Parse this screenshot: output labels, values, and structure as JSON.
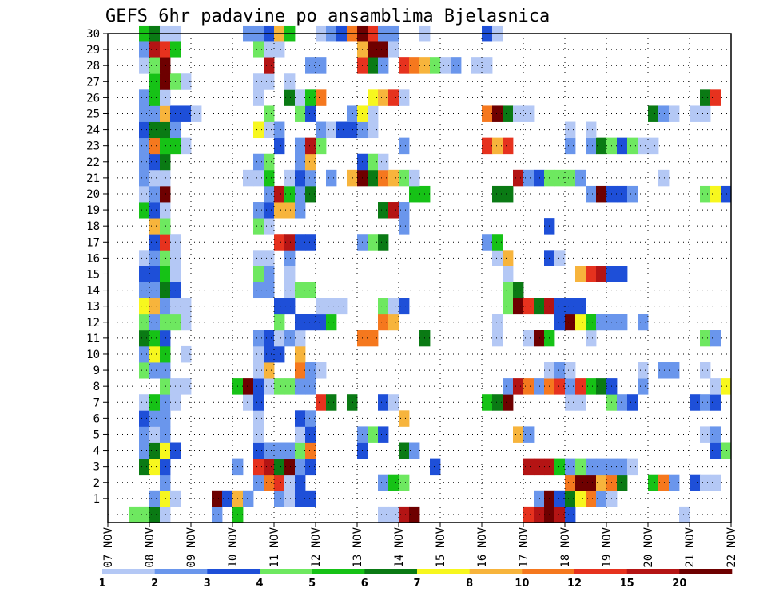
{
  "chart_data": {
    "type": "heatmap",
    "title": "GEFS 6hr padavine po ansamblima Bjelasnica",
    "xlabel": "",
    "ylabel": "",
    "x_tick_labels": [
      "07 NOV",
      "08 NOV",
      "09 NOV",
      "10 NOV",
      "11 NOV",
      "12 NOV",
      "13 NOV",
      "14 NOV",
      "15 NOV",
      "16 NOV",
      "17 NOV",
      "18 NOV",
      "19 NOV",
      "20 NOV",
      "21 NOV",
      "22 NOV"
    ],
    "xlim": [
      "07 NOV 00Z",
      "22 NOV 00Z"
    ],
    "time_step_hours": 6,
    "y_tick_labels": [
      "1",
      "2",
      "3",
      "4",
      "5",
      "6",
      "7",
      "8",
      "9",
      "10",
      "11",
      "12",
      "13",
      "14",
      "15",
      "16",
      "17",
      "18",
      "19",
      "20",
      "21",
      "22",
      "23",
      "24",
      "25",
      "26",
      "27",
      "28",
      "29",
      "30"
    ],
    "ylim": [
      0,
      30
    ],
    "grid": "dotted",
    "colorbar": {
      "position": "bottom",
      "labels": [
        "1",
        "2",
        "3",
        "4",
        "5",
        "6",
        "7",
        "8",
        "10",
        "12",
        "15",
        "20"
      ],
      "bins": [
        {
          "lo": 1,
          "hi": 2,
          "color": "#b4c8f5"
        },
        {
          "lo": 2,
          "hi": 3,
          "color": "#6a96ec"
        },
        {
          "lo": 3,
          "hi": 4,
          "color": "#1e4fd8"
        },
        {
          "lo": 4,
          "hi": 5,
          "color": "#6ee860"
        },
        {
          "lo": 5,
          "hi": 6,
          "color": "#16c216"
        },
        {
          "lo": 6,
          "hi": 7,
          "color": "#0a7a14"
        },
        {
          "lo": 7,
          "hi": 8,
          "color": "#f7f71e"
        },
        {
          "lo": 8,
          "hi": 10,
          "color": "#f7b43c"
        },
        {
          "lo": 10,
          "hi": 12,
          "color": "#f5781e"
        },
        {
          "lo": 12,
          "hi": 15,
          "color": "#e6321e"
        },
        {
          "lo": 15,
          "hi": 20,
          "color": "#b41414"
        },
        {
          "lo": 20,
          "hi": 30,
          "color": "#6e0000"
        }
      ]
    },
    "members": {
      "30": "07.7:5,08.0:6,08.3:1,08.5:1,10.2:2,10.5:2,10.7:3,11.0:8,11.2:5,12.0:1,12.2:2,12.5:3,12.7:10,13.0:20,13.2:12,13.5:2,13.7:2,14.5:1,16.0:3,16.2:1",
      "29": "07.7:2,08.0:15,08.2:12,08.5:5,10.5:4,10.7:1,11.0:1,13.0:8,13.2:20,13.5:20,13.7:1",
      "28": "07.7:1,08.0:4,08.2:20,10.7:15,11.7:2,12.0:2,13.0:12,13.2:6,13.5:2,14.0:12,14.2:10,14.5:8,14.7:4,15.0:1,15.2:2,15.7:1,16.0:1",
      "27": "08.0:5,08.2:20,08.5:4,08.7:1,10.5:1,10.7:1,11.2:1",
      "26": "07.7:2,08.0:5,08.2:1,10.5:1,11.2:6,11.5:1,11.7:5,12.0:10,13.2:7,13.5:8,13.7:12,14.0:1,21.2:6,21.5:12",
      "25": "07.7:2,08.0:2,08.2:8,08.5:3,08.7:3,09.0:1,10.7:4,11.5:4,11.7:3,12.7:2,13.0:7,13.2:1,16.0:10,16.2:20,16.5:6,16.7:1,17.0:1,20.0:6,20.2:2,20.5:1,21.0:1,21.2:1",
      "24": "07.7:3,08.0:6,08.2:6,08.5:2,10.5:7,10.7:1,11.0:2,12.0:2,12.2:1,12.5:3,12.7:3,13.0:2,13.2:1,18.0:1,18.5:1",
      "23": "07.7:2,08.0:10,08.2:5,08.5:5,08.7:1,11.0:3,11.5:2,11.7:15,12.0:4,14.0:2,16.0:12,16.2:8,16.5:12,18.0:2,18.5:2,18.7:6,19.0:4,19.2:3,19.5:4,19.7:1,20.0:1",
      "22": "07.7:2,08.0:3,08.2:6,10.5:2,10.7:4,11.5:2,11.7:8,13.0:3,13.2:4,13.5:1",
      "21": "07.7:2,08.0:1,08.2:1,10.2:1,10.5:1,10.7:5,11.2:1,11.5:3,11.7:2,12.2:2,12.7:8,13.0:20,13.2:6,13.5:10,13.7:8,14.0:4,14.2:1,16.7:15,17.0:2,17.2:3,17.5:4,17.7:4,18.0:4,18.2:2,20.2:1",
      "20": "07.7:1,08.0:2,08.2:20,10.7:2,11.0:15,11.2:5,11.5:2,11.7:6,14.2:5,14.5:5,16.2:6,16.5:6,18.5:2,18.7:20,19.0:3,19.2:3,19.5:2,21.2:4,21.5:7,21.7:3",
      "19": "07.7:5,08.0:3,08.2:1,10.5:2,10.7:3,11.0:8,11.2:8,11.5:2,13.5:6,13.7:15,14.0:2",
      "18": "08.0:8,08.2:4,10.5:4,10.7:1,14.0:2,17.5:3",
      "17": "08.0:3,08.2:12,08.5:1,11.0:12,11.2:15,11.5:3,11.7:3,13.0:2,13.2:4,13.5:6,16.0:2,16.2:5",
      "16": "07.7:1,08.0:2,08.2:4,08.5:1,10.5:1,10.7:1,11.2:2,16.2:1,16.5:8,17.5:3,17.7:1",
      "15": "07.7:3,08.0:3,08.2:5,08.5:1,10.5:4,10.7:2,11.2:1,16.5:1,18.2:8,18.5:12,18.7:15,19.0:3,19.2:3",
      "14": "07.7:2,08.0:2,08.2:6,08.5:3,10.5:2,10.7:2,11.2:1,11.5:4,11.7:4,16.5:4,16.7:6",
      "13": "07.7:7,08.0:8,08.2:2,08.5:1,08.7:1,11.0:3,11.2:3,12.0:1,12.2:1,12.5:1,13.5:4,13.7:1,14.0:3,16.5:4,16.7:20,17.0:12,17.2:6,17.5:15,17.7:3,18.0:3,18.2:3",
      "12": "07.7:4,08.0:2,08.2:4,08.5:4,08.7:1,11.0:4,11.5:3,11.7:3,12.0:3,12.2:5,13.5:10,13.7:8,16.2:1,17.7:3,18.0:20,18.2:7,18.5:5,18.7:2,19.0:2,19.2:2,19.7:2",
      "11": "07.7:6,08.0:5,08.2:3,10.5:2,10.7:3,11.0:1,11.2:2,11.5:1,13.0:10,13.2:10,14.5:6,16.2:1,17.0:1,17.2:20,17.5:5,18.5:1,21.2:4,21.5:2",
      "10": "07.7:2,08.0:7,08.2:5,08.7:1,10.5:1,10.7:3,11.0:3,11.5:8",
      "9": "07.7:4,08.0:2,08.2:2,10.5:1,10.7:8,11.5:10,11.7:2,12.0:1,17.5:1,17.7:2,18.0:1,19.7:1,20.2:2,20.5:2,21.2:1",
      "8": "08.2:4,08.5:1,08.7:1,10.0:5,10.2:20,10.5:3,10.7:1,11.0:4,11.2:4,11.5:2,11.7:2,16.5:2,16.7:15,17.0:10,17.2:2,17.5:10,17.7:12,18.0:2,18.2:12,18.5:5,18.7:6,19.0:3,19.7:2,21.5:1,21.7:7,21.9:10",
      "7": "07.7:1,08.0:5,08.2:2,08.5:1,10.2:1,10.5:3,12.0:12,12.2:6,12.7:6,13.5:3,13.7:1,16.0:5,16.2:6,16.5:20,18.0:1,18.2:1,19.0:4,19.2:2,19.5:3,21.0:3,21.2:2,21.5:3",
      "6": "07.7:3,08.0:2,08.2:2,10.5:1,11.5:3,11.7:2,14.0:8",
      "5": "07.7:2,08.0:1,08.2:2,10.5:1,11.5:1,11.7:3,13.0:2,13.2:4,13.5:3,16.7:8,17.0:2,21.2:1,21.5:2",
      "4": "07.7:2,08.0:6,08.2:7,08.5:3,10.5:3,10.7:2,11.0:2,11.2:2,11.5:4,11.7:10,13.0:3,14.0:6,14.2:2,21.5:3,21.7:4",
      "3": "07.7:6,08.0:7,08.2:3,10.0:2,10.5:12,10.7:15,11.0:6,11.2:20,11.5:2,11.7:3,14.7:3,17.0:15,17.2:15,17.5:15,17.7:5,18.0:2,18.2:4,18.5:2,18.7:2,19.0:2,19.2:2,19.5:1",
      "2": "08.2:2,10.5:2,10.7:10,11.0:12,11.2:1,11.5:3,13.5:2,13.7:5,14.0:4,18.0:10,18.2:20,18.5:20,18.7:8,19.0:10,19.2:6,20.0:5,20.2:10,20.5:2,21.0:3,21.2:1,21.5:1",
      "1": "08.0:2,08.2:7,08.5:1,09.5:20,09.7:3,10.0:8,10.2:2,11.0:2,11.2:1,11.5:3,11.7:3,17.2:2,17.5:20,17.7:3,18.0:6,18.2:7,18.5:10,18.7:2,19.0:1",
      "0": "07.5:4,07.7:4,08.0:6,08.2:1,09.5:2,10.0:5,13.5:1,13.7:1,14.0:15,14.2:20,17.0:12,17.2:15,17.5:20,17.7:15,18.0:3,20.7:1"
    }
  }
}
